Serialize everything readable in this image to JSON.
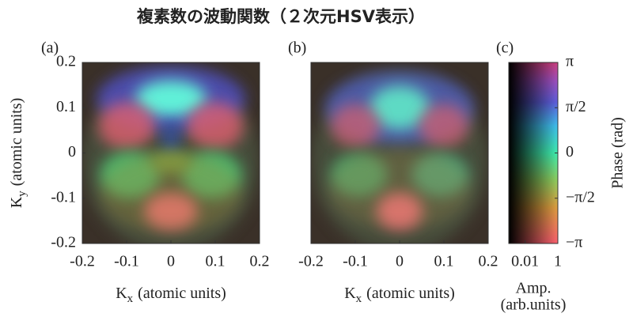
{
  "title": "複素数の波動関数（２次元HSV表示）",
  "chart_data": [
    {
      "type": "heatmap",
      "panel_label": "(a)",
      "xlabel_symbol": "K",
      "xlabel_subscript": "x",
      "xlabel_unit": "(atomic units)",
      "ylabel_symbol": "K",
      "ylabel_subscript": "y",
      "ylabel_unit": "(atomic units)",
      "xlim": [
        -0.2,
        0.2
      ],
      "xticks": [
        -0.2,
        -0.1,
        0,
        0.1,
        0.2
      ],
      "ylim": [
        -0.2,
        0.2
      ],
      "yticks": [
        -0.2,
        -0.1,
        0,
        0.1,
        0.2
      ]
    },
    {
      "type": "heatmap",
      "panel_label": "(b)",
      "xlabel_symbol": "K",
      "xlabel_subscript": "x",
      "xlabel_unit": "(atomic units)",
      "xlim": [
        -0.2,
        0.2
      ],
      "xticks": [
        -0.2,
        -0.1,
        0,
        0.1,
        0.2
      ],
      "ylim": [
        -0.2,
        0.2
      ]
    },
    {
      "type": "colorbar",
      "panel_label": "(c)",
      "xlabel_lines": [
        "Amp.",
        "(arb.units)"
      ],
      "ylabel": "Phase (rad)",
      "xscale": "log",
      "xlim": [
        0.001,
        1
      ],
      "xticks": [
        0.01,
        1
      ],
      "ylim": [
        -3.14159,
        3.14159
      ],
      "yticks": [
        {
          "value": 3.14159,
          "label": "π"
        },
        {
          "value": 1.5708,
          "label": "π/2"
        },
        {
          "value": 0,
          "label": "0"
        },
        {
          "value": -1.5708,
          "label": "−π/2"
        },
        {
          "value": -3.14159,
          "label": "−π"
        }
      ]
    }
  ]
}
